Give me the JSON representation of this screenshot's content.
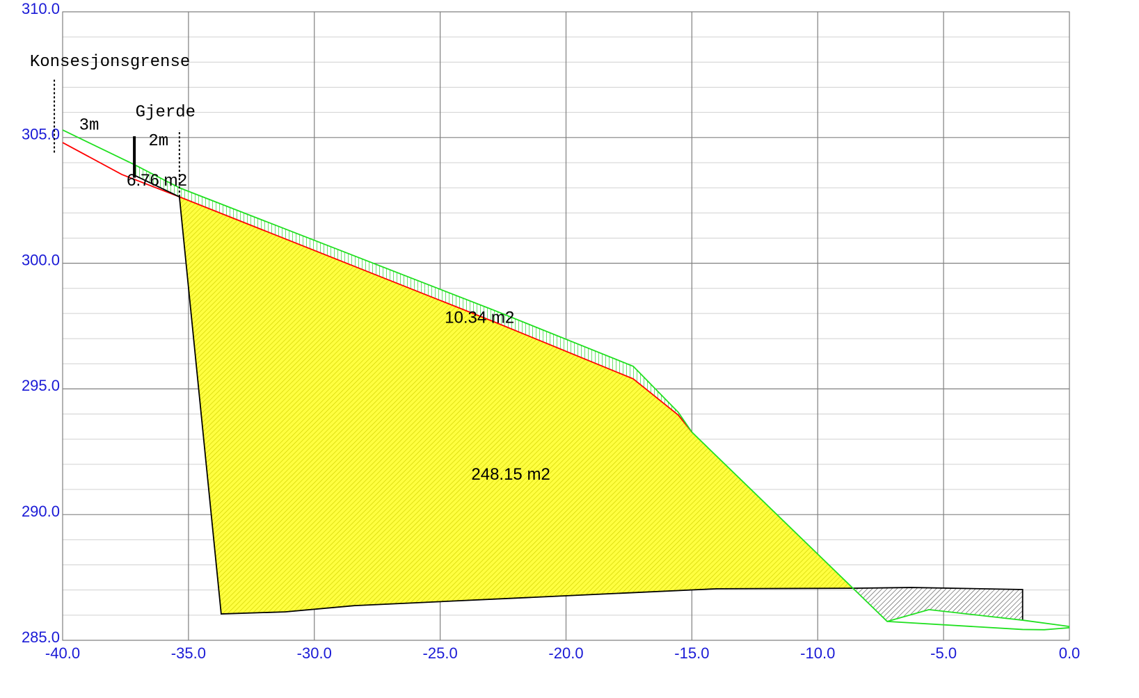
{
  "chart_data": {
    "type": "profile",
    "xlim": [
      -40,
      0
    ],
    "ylim": [
      285,
      310
    ],
    "xticks": [
      {
        "value": -40,
        "label": "-40.0"
      },
      {
        "value": -35,
        "label": "-35.0"
      },
      {
        "value": -30,
        "label": "-30.0"
      },
      {
        "value": -25,
        "label": "-25.0"
      },
      {
        "value": -20,
        "label": "-20.0"
      },
      {
        "value": -15,
        "label": "-15.0"
      },
      {
        "value": -10,
        "label": "-10.0"
      },
      {
        "value": -5,
        "label": "-5.0"
      },
      {
        "value": 0,
        "label": "0.0"
      }
    ],
    "yticks": [
      {
        "value": 285,
        "label": "285.0"
      },
      {
        "value": 290,
        "label": "290.0"
      },
      {
        "value": 295,
        "label": "295.0"
      },
      {
        "value": 300,
        "label": "300.0"
      },
      {
        "value": 305,
        "label": "305.0"
      },
      {
        "value": 310,
        "label": "310.0"
      }
    ],
    "y_minor_gridlines": [
      286,
      287,
      288,
      289,
      291,
      292,
      293,
      294,
      296,
      297,
      298,
      299,
      301,
      302,
      303,
      304,
      306,
      307,
      308,
      309
    ],
    "grid": true,
    "areas": [
      {
        "label": "248.15 m2",
        "color": "#ffff40",
        "hatch": "#d0d000",
        "x": [
          -35.36,
          -22.86,
          -17.33,
          -15.54,
          -14.99,
          -8.6,
          -14.02,
          -28.39,
          -31.16,
          -33.7
        ],
        "values": [
          302.64,
          297.67,
          295.4,
          293.96,
          293.27,
          287.07,
          287.05,
          286.38,
          286.13,
          286.05
        ]
      },
      {
        "label": "10.34 m2",
        "color": "#ffffff",
        "hatch": "#20d020",
        "x": [
          -37.15,
          -35.36,
          -22.89,
          -17.33,
          -15.54,
          -14.99,
          -15.54,
          -17.33,
          -22.86,
          -35.36
        ],
        "values": [
          303.92,
          303.0,
          298.14,
          295.9,
          294.07,
          293.27,
          293.96,
          295.4,
          297.67,
          302.64
        ]
      },
      {
        "label": "6.76 m2",
        "color": "#ffffff",
        "hatch": "#20d020",
        "x": [
          -37.15,
          -35.36,
          -35.36,
          -37.15
        ],
        "values": [
          303.92,
          303.0,
          302.64,
          303.5
        ]
      },
      {
        "color": "#ffffff",
        "hatch": "#555555",
        "x": [
          -8.6,
          -6.28,
          -1.86,
          -1.86,
          -5.58,
          -7.24
        ],
        "values": [
          287.07,
          287.1,
          287.02,
          285.8,
          286.22,
          285.75
        ]
      }
    ],
    "series": [
      {
        "color": "#ff0000",
        "x": [
          -40,
          -37.65,
          -35.36,
          -22.86,
          -17.33,
          -15.54,
          -14.99
        ],
        "values": [
          304.8,
          303.53,
          302.64,
          297.67,
          295.4,
          293.96,
          293.27
        ]
      },
      {
        "color": "#000000",
        "x": [
          -37.15,
          -35.36,
          -33.7,
          -31.16,
          -28.39,
          -14.02,
          -8.6,
          -6.28,
          -1.86,
          -1.86
        ],
        "values": [
          303.5,
          302.64,
          286.05,
          286.13,
          286.38,
          287.05,
          287.07,
          287.1,
          287.02,
          285.8
        ]
      },
      {
        "color": "#20e020",
        "x": [
          -40,
          -37.15,
          -35.36,
          -22.89,
          -17.33,
          -15.54,
          -14.99,
          -8.6,
          -7.24,
          -5.58,
          -1.86,
          0
        ],
        "values": [
          305.3,
          303.92,
          303.0,
          298.14,
          295.9,
          294.07,
          293.27,
          287.07,
          285.75,
          286.22,
          285.8,
          285.55
        ]
      },
      {
        "color": "#20e020",
        "x": [
          -7.24,
          -1.86,
          -1.0,
          0
        ],
        "values": [
          285.75,
          285.43,
          285.42,
          285.5
        ]
      }
    ],
    "markers": [
      {
        "label": "Konsesjonsgrense",
        "x": -40.33,
        "y": [
          304.4,
          307.3
        ],
        "style": "dotted"
      },
      {
        "label": "Gjerde",
        "x": -35.36,
        "y": [
          302.64,
          305.3
        ],
        "style": "dotted"
      },
      {
        "x": -37.15,
        "y": [
          303.4,
          305.05
        ],
        "style": "post"
      }
    ],
    "annotations": [
      {
        "text": "3m",
        "x": -38.95,
        "y": 305.49
      },
      {
        "text": "2m",
        "x": -36.19,
        "y": 304.86
      }
    ]
  }
}
